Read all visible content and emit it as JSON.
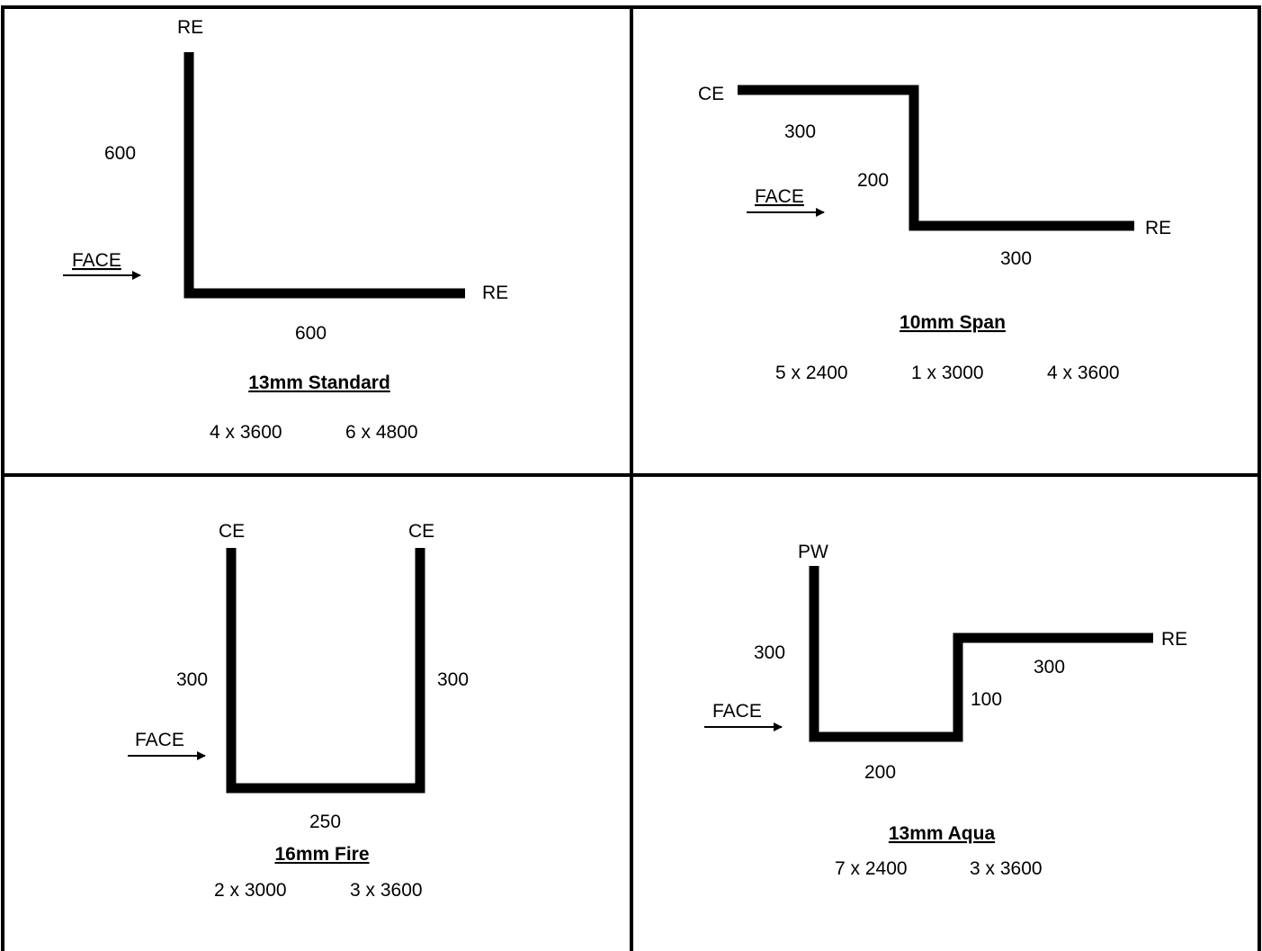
{
  "panels": [
    {
      "title": "13mm Standard",
      "quantities": [
        "4 x 3600",
        "6 x 4800"
      ],
      "end_labels": [
        "RE",
        "RE"
      ],
      "dimensions": [
        "600",
        "600"
      ],
      "face_label": "FACE"
    },
    {
      "title": "10mm Span",
      "quantities": [
        "5 x 2400",
        "1 x 3000",
        "4 x 3600"
      ],
      "end_labels": [
        "CE",
        "RE"
      ],
      "dimensions": [
        "300",
        "200",
        "300"
      ],
      "face_label": "FACE"
    },
    {
      "title": "16mm Fire",
      "quantities": [
        "2 x 3000",
        "3 x 3600"
      ],
      "end_labels": [
        "CE",
        "CE"
      ],
      "dimensions": [
        "300",
        "300",
        "250"
      ],
      "face_label": "FACE"
    },
    {
      "title": "13mm Aqua",
      "quantities": [
        "7 x 2400",
        "3 x 3600"
      ],
      "end_labels": [
        "PW",
        "RE"
      ],
      "dimensions": [
        "300",
        "200",
        "100",
        "300"
      ],
      "face_label": "FACE"
    }
  ],
  "colors": {
    "line": "#000000",
    "background": "#ffffff"
  }
}
